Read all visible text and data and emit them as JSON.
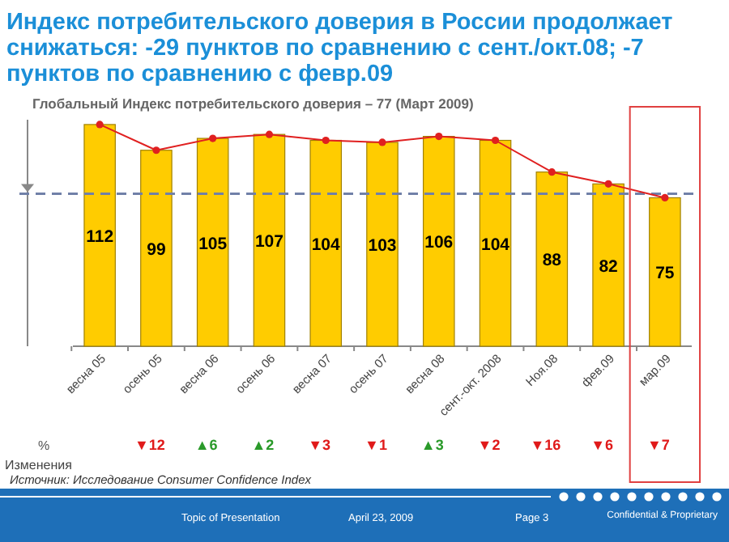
{
  "chart_data": {
    "type": "bar",
    "title": "Индекс потребительского доверия в России продолжает снижаться: -29 пунктов по сравнению с сент./окт.08; -7 пунктов по сравнению с февр.09",
    "subtitle": "Глобальный Индекс потребительского доверия – 77 (Март 2009)",
    "categories": [
      "весна 05",
      "осень 05",
      "весна 06",
      "осень 06",
      "весна 07",
      "осень 07",
      "весна 08",
      "сент.-окт. 2008",
      "Ноя.08",
      "фев.09",
      "мар.09"
    ],
    "series": [
      {
        "color": "#ffcc00",
        "values": [
          112,
          99,
          105,
          107,
          104,
          103,
          106,
          104,
          88,
          82,
          75
        ],
        "value_labels": [
          "112",
          "99",
          "105",
          "107",
          "104",
          "103",
          "106",
          "104",
          "88",
          "82",
          "75"
        ]
      },
      {
        "type": "line",
        "color": "#e02020",
        "values": [
          112,
          99,
          105,
          107,
          104,
          103,
          106,
          104,
          88,
          82,
          75
        ]
      }
    ],
    "marker": "circle",
    "ref_lines": [
      {
        "axis": "y",
        "value": 77,
        "color": "#7080a8",
        "line_style": "dashed"
      }
    ],
    "annotations": [
      "%",
      "▼12",
      "▲6",
      "▲2",
      "▼3",
      "▼1",
      "▲3",
      "▼2",
      "▼16",
      "▼6",
      "▼7",
      "Изменения",
      "Источник: Исследование Consumer Confidence Index",
      "Topic of Presentation",
      "April 23, 2009",
      "Page 3",
      "Confidential & Proprietary"
    ]
  }
}
